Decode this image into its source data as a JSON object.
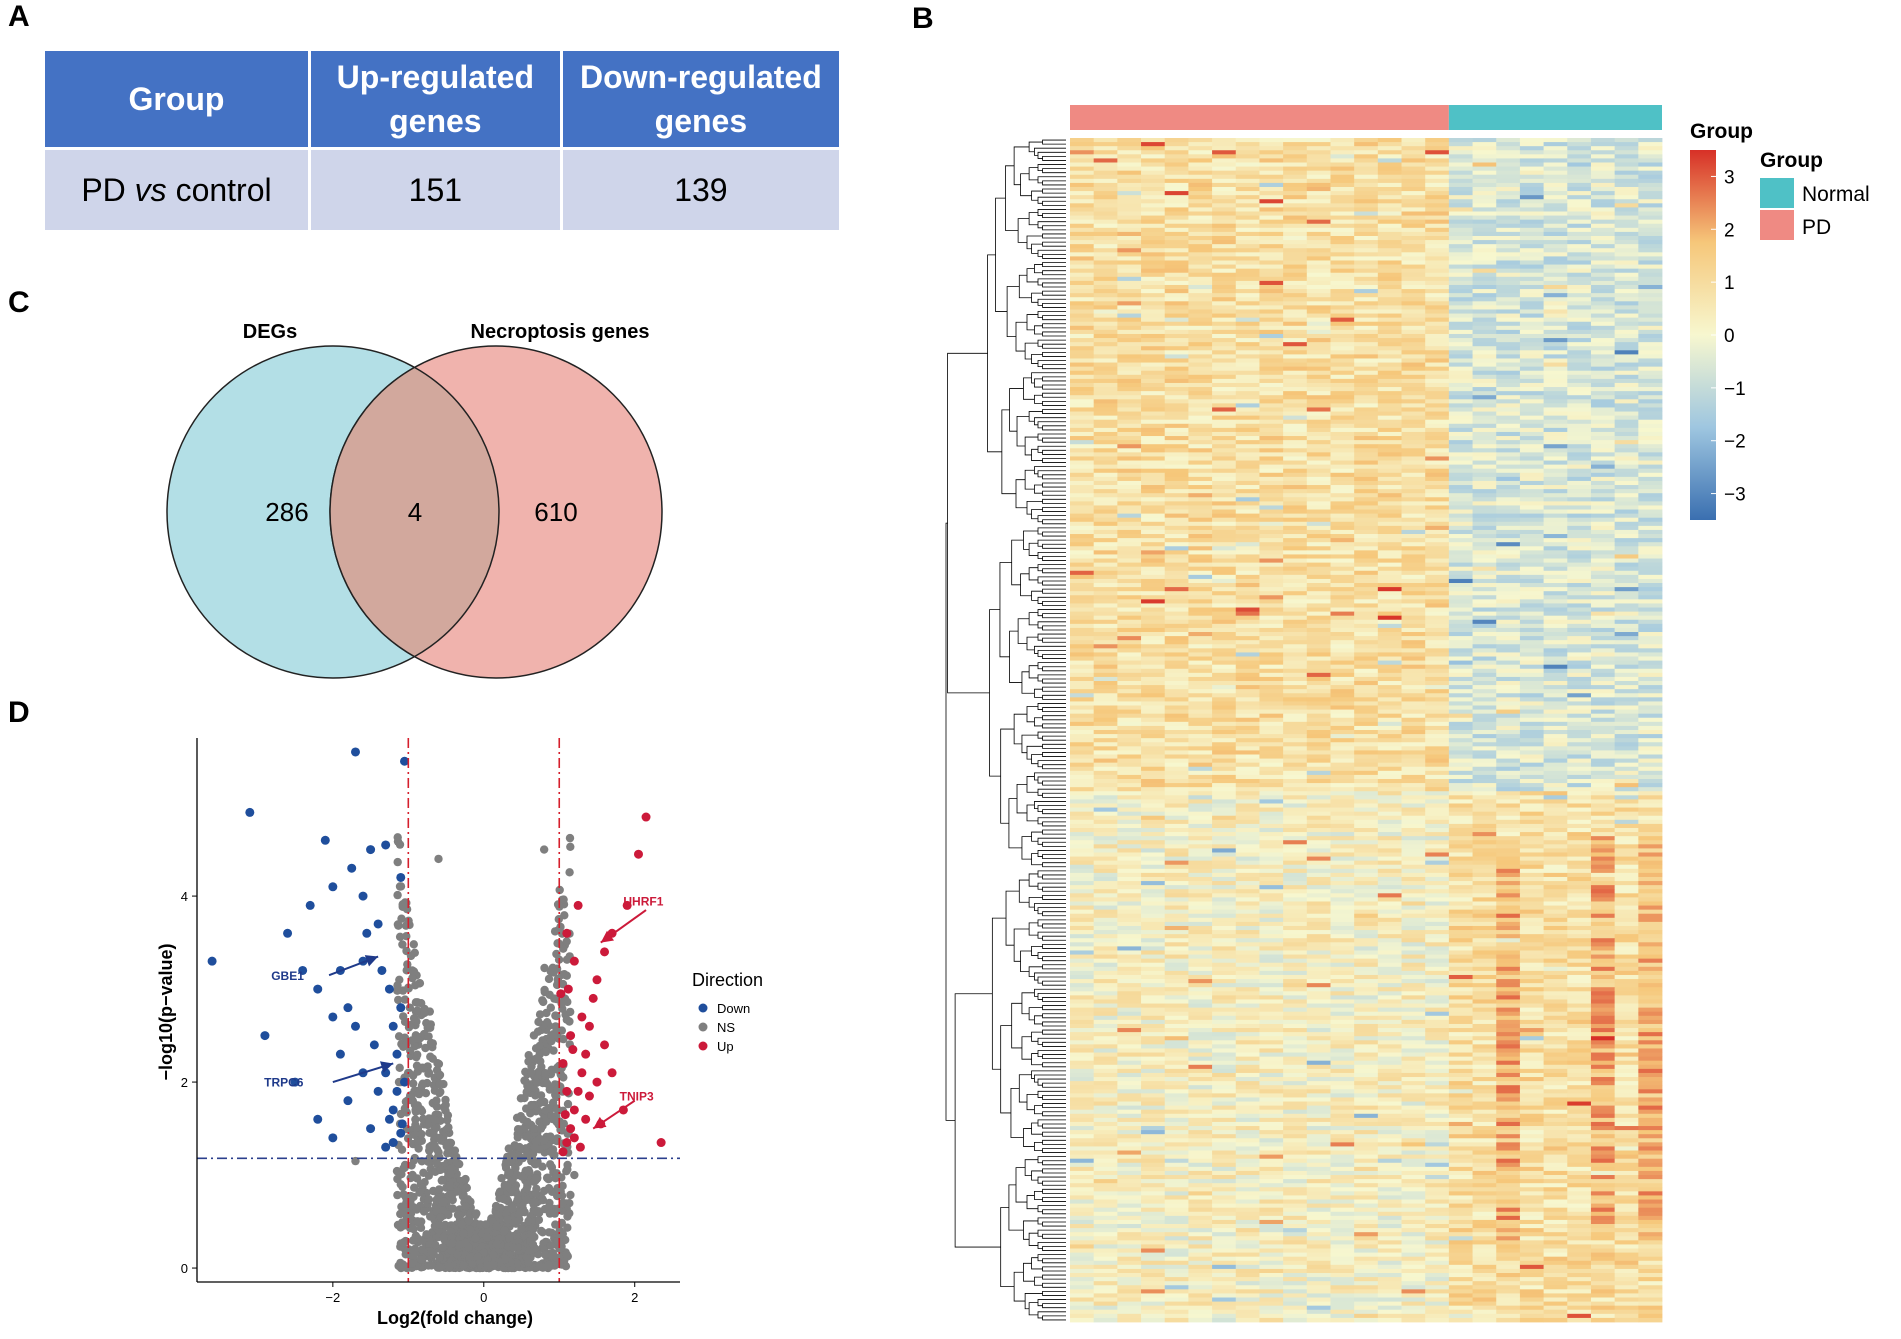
{
  "panels": {
    "a": "A",
    "b": "B",
    "c": "C",
    "d": "D"
  },
  "table": {
    "headers": [
      "Group",
      "Up-regulated genes",
      "Down-regulated genes"
    ],
    "rows": [
      {
        "group_pre": "PD ",
        "group_italic": "vs",
        "group_post": " control",
        "up": "151",
        "down": "139"
      }
    ]
  },
  "chart_data": [
    {
      "type": "venn",
      "sets": [
        {
          "name": "DEGs",
          "only": 286,
          "color": "#b3dfe6"
        },
        {
          "name": "Necroptosis genes",
          "only": 610,
          "color": "#f0b3ad"
        }
      ],
      "intersection": 4,
      "intersection_color": "#d2a89d",
      "labels": {
        "left": "286",
        "mid": "4",
        "right": "610"
      }
    },
    {
      "type": "scatter",
      "subtype": "volcano",
      "xlabel": "Log2(fold change)",
      "ylabel": "−log10(p−value)",
      "xlim": [
        -3.8,
        2.6
      ],
      "ylim": [
        -0.15,
        5.7
      ],
      "xticks": [
        -2,
        0,
        2
      ],
      "yticks": [
        0,
        2,
        4
      ],
      "fc_threshold": [
        -1,
        1
      ],
      "p_threshold": 1.18,
      "legend": {
        "title": "Direction",
        "items": [
          {
            "name": "Down",
            "color": "#1f4e9c"
          },
          {
            "name": "NS",
            "color": "#7f7f7f"
          },
          {
            "name": "Up",
            "color": "#cc1a3a"
          }
        ]
      },
      "annotations": [
        {
          "label": "GBE1",
          "x": -1.4,
          "y": 3.35,
          "color": "#1f3a8a"
        },
        {
          "label": "TRPC6",
          "x": -1.2,
          "y": 2.2,
          "color": "#1f3a8a"
        },
        {
          "label": "UHRF1",
          "x": 1.55,
          "y": 3.5,
          "color": "#cc1a3a"
        },
        {
          "label": "TNIP3",
          "x": 1.45,
          "y": 1.5,
          "color": "#cc1a3a"
        }
      ],
      "down_points": [
        [
          -3.6,
          3.3
        ],
        [
          -3.1,
          4.9
        ],
        [
          -2.9,
          2.5
        ],
        [
          -2.5,
          2.0
        ],
        [
          -2.6,
          3.6
        ],
        [
          -2.3,
          3.9
        ],
        [
          -2.1,
          4.6
        ],
        [
          -2.0,
          4.1
        ],
        [
          -1.9,
          3.2
        ],
        [
          -1.8,
          2.8
        ],
        [
          -1.7,
          5.55
        ],
        [
          -1.6,
          4.0
        ],
        [
          -1.5,
          4.5
        ],
        [
          -1.4,
          3.7
        ],
        [
          -1.3,
          4.55
        ],
        [
          -1.25,
          3.0
        ],
        [
          -1.2,
          2.6
        ],
        [
          -1.15,
          2.3
        ],
        [
          -1.1,
          4.2
        ],
        [
          -1.05,
          5.45
        ],
        [
          -2.2,
          1.6
        ],
        [
          -2.0,
          1.4
        ],
        [
          -1.8,
          1.8
        ],
        [
          -1.6,
          2.1
        ],
        [
          -1.5,
          1.5
        ],
        [
          -1.4,
          1.9
        ],
        [
          -1.3,
          1.3
        ],
        [
          -1.2,
          1.7
        ],
        [
          -1.1,
          1.45
        ],
        [
          -1.05,
          2.0
        ],
        [
          -1.9,
          2.3
        ],
        [
          -1.7,
          2.6
        ],
        [
          -1.6,
          3.3
        ],
        [
          -1.45,
          2.4
        ],
        [
          -1.35,
          3.2
        ],
        [
          -1.25,
          1.6
        ],
        [
          -1.15,
          1.9
        ],
        [
          -1.1,
          2.8
        ],
        [
          -2.4,
          3.2
        ],
        [
          -2.2,
          3.0
        ],
        [
          -2.0,
          2.7
        ],
        [
          -1.75,
          4.3
        ],
        [
          -1.55,
          3.6
        ],
        [
          -1.3,
          2.1
        ],
        [
          -1.2,
          1.35
        ],
        [
          -1.08,
          1.55
        ]
      ],
      "up_points": [
        [
          2.35,
          1.35
        ],
        [
          2.15,
          4.85
        ],
        [
          2.05,
          4.45
        ],
        [
          1.9,
          3.9
        ],
        [
          1.7,
          3.6
        ],
        [
          1.6,
          3.4
        ],
        [
          1.5,
          3.1
        ],
        [
          1.45,
          2.9
        ],
        [
          1.4,
          2.6
        ],
        [
          1.35,
          2.3
        ],
        [
          1.3,
          2.1
        ],
        [
          1.25,
          1.9
        ],
        [
          1.2,
          1.7
        ],
        [
          1.15,
          1.5
        ],
        [
          1.1,
          1.35
        ],
        [
          1.05,
          1.25
        ],
        [
          1.2,
          3.3
        ],
        [
          1.1,
          3.6
        ],
        [
          1.25,
          3.9
        ],
        [
          1.3,
          2.7
        ],
        [
          1.15,
          2.5
        ],
        [
          1.05,
          2.2
        ],
        [
          1.1,
          1.9
        ],
        [
          1.2,
          1.4
        ],
        [
          1.35,
          1.6
        ],
        [
          1.4,
          1.85
        ],
        [
          1.5,
          2.0
        ],
        [
          1.55,
          1.55
        ],
        [
          1.08,
          1.65
        ],
        [
          1.02,
          2.95
        ],
        [
          1.12,
          3.0
        ],
        [
          1.18,
          2.35
        ],
        [
          1.28,
          1.3
        ],
        [
          1.6,
          2.4
        ],
        [
          1.7,
          2.1
        ],
        [
          1.85,
          1.7
        ]
      ],
      "ns_shape": "V-shaped cloud of non-significant genes centred at x = 0"
    },
    {
      "type": "heatmap",
      "title": "Group",
      "colorbar_ticks": [
        "3",
        "2",
        "1",
        "0",
        "−1",
        "−2",
        "−3"
      ],
      "colorbar_range": [
        -3.5,
        3.5
      ],
      "colorscale": [
        "#3a6fb0",
        "#9ec6e0",
        "#f7f7cf",
        "#f6c77a",
        "#d73027"
      ],
      "legend": {
        "title": "Group",
        "items": [
          {
            "name": "Normal",
            "color": "#4fc1c6"
          },
          {
            "name": "PD",
            "color": "#ef8a83"
          }
        ]
      },
      "groups": [
        {
          "name": "PD",
          "columns": 16
        },
        {
          "name": "Normal",
          "columns": 9
        }
      ],
      "rows": 290,
      "row_dendrogram": true
    }
  ]
}
